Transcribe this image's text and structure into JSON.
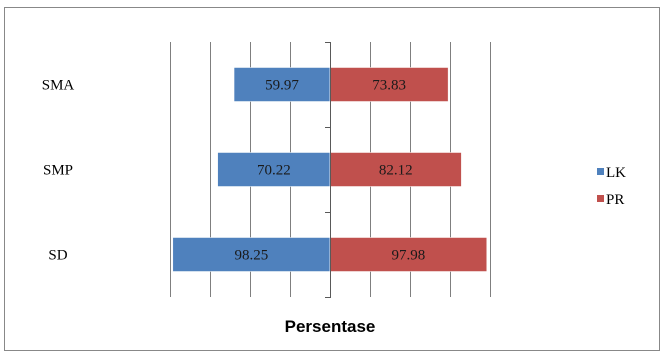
{
  "chart_data": {
    "type": "bar",
    "orientation": "horizontal",
    "layout": "diverging",
    "categories": [
      "SMA",
      "SMP",
      "SD"
    ],
    "series": [
      {
        "name": "LK",
        "values": [
          59.97,
          70.22,
          98.25
        ],
        "color": "#4f81bd",
        "direction": "left"
      },
      {
        "name": "PR",
        "values": [
          73.83,
          82.12,
          97.98
        ],
        "color": "#c0504d",
        "direction": "right"
      }
    ],
    "title": "",
    "xlabel": "Persentase",
    "ylabel": "",
    "xlim": [
      -100,
      100
    ],
    "grid": true,
    "legend": "right"
  }
}
